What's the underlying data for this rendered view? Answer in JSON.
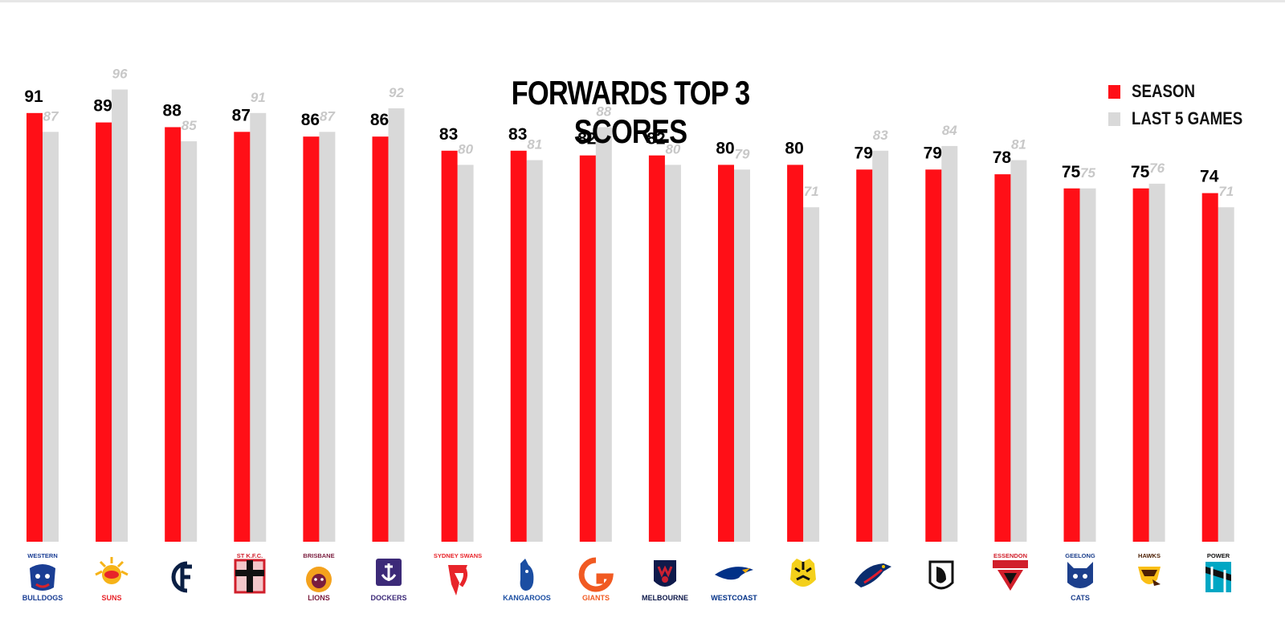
{
  "chart_data": {
    "type": "bar",
    "title": "FORWARDS TOP 3 SCORES",
    "xlabel": "",
    "ylabel": "",
    "legend_position": "top-right",
    "grid": false,
    "ylim": [
      0,
      100
    ],
    "categories": [
      "Western Bulldogs",
      "Suns",
      "Carlton",
      "St K.F.C.",
      "Brisbane Lions",
      "Fremantle Dockers",
      "Sydney Swans",
      "Kangaroos",
      "Giants",
      "Melbourne",
      "West Coast",
      "Richmond",
      "Adelaide Crows",
      "Collingwood",
      "Essendon",
      "Geelong Cats",
      "Hawks",
      "Power"
    ],
    "series": [
      {
        "name": "SEASON",
        "color": "#ff0f17",
        "values": [
          91,
          89,
          88,
          87,
          86,
          86,
          83,
          83,
          82,
          82,
          80,
          80,
          79,
          79,
          78,
          75,
          75,
          74
        ]
      },
      {
        "name": "LAST 5 GAMES",
        "color": "#d9d9d9",
        "values": [
          87,
          96,
          85,
          91,
          87,
          92,
          80,
          81,
          88,
          80,
          79,
          71,
          83,
          84,
          81,
          75,
          76,
          71
        ]
      }
    ]
  },
  "logos": [
    {
      "icon": "bulldog-icon",
      "lines": [
        "WESTERN",
        "BULLDOGS"
      ],
      "color": "#1a3e94",
      "accent": "#d7232b"
    },
    {
      "icon": "sun-icon",
      "lines": [
        "",
        "SUNS"
      ],
      "color": "#e8242a",
      "accent": "#f6b318"
    },
    {
      "icon": "carlton-monogram-icon",
      "lines": [
        "",
        ""
      ],
      "color": "#0a1f44",
      "accent": "#0a1f44"
    },
    {
      "icon": "saints-cross-icon",
      "lines": [
        "ST K.F.C.",
        ""
      ],
      "color": "#d11f2b",
      "accent": "#111111"
    },
    {
      "icon": "lion-icon",
      "lines": [
        "BRISBANE",
        "LIONS"
      ],
      "color": "#7a1d3e",
      "accent": "#f4a21d"
    },
    {
      "icon": "anchor-icon",
      "lines": [
        "",
        "DOCKERS"
      ],
      "color": "#3c2a78",
      "accent": "#ffffff"
    },
    {
      "icon": "swan-icon",
      "lines": [
        "SYDNEY SWANS",
        ""
      ],
      "color": "#e8242a",
      "accent": "#ffffff"
    },
    {
      "icon": "kangaroo-icon",
      "lines": [
        "",
        "KANGAROOS"
      ],
      "color": "#1b4ea2",
      "accent": "#ffffff"
    },
    {
      "icon": "giants-icon",
      "lines": [
        "",
        "GIANTS"
      ],
      "color": "#f15a22",
      "accent": "#4a4a4a"
    },
    {
      "icon": "demon-icon",
      "lines": [
        "",
        "MELBOURNE"
      ],
      "color": "#0f1a4b",
      "accent": "#cc2031"
    },
    {
      "icon": "eagle-icon",
      "lines": [
        "",
        "WESTCOAST"
      ],
      "color": "#003087",
      "accent": "#f2a900"
    },
    {
      "icon": "tiger-icon",
      "lines": [
        "",
        ""
      ],
      "color": "#f4d01b",
      "accent": "#111111"
    },
    {
      "icon": "crow-icon",
      "lines": [
        "",
        ""
      ],
      "color": "#0b2d6e",
      "accent": "#e21b2d"
    },
    {
      "icon": "magpie-icon",
      "lines": [
        "",
        ""
      ],
      "color": "#111111",
      "accent": "#ffffff"
    },
    {
      "icon": "bombers-icon",
      "lines": [
        "ESSENDON",
        ""
      ],
      "color": "#d11f2b",
      "accent": "#111111"
    },
    {
      "icon": "cat-icon",
      "lines": [
        "GEELONG",
        "CATS"
      ],
      "color": "#1c3f8c",
      "accent": "#ffffff"
    },
    {
      "icon": "hawk-icon",
      "lines": [
        "HAWKS",
        ""
      ],
      "color": "#4d2004",
      "accent": "#fbbf15"
    },
    {
      "icon": "power-icon",
      "lines": [
        "POWER",
        ""
      ],
      "color": "#111111",
      "accent": "#00a7c4"
    }
  ]
}
